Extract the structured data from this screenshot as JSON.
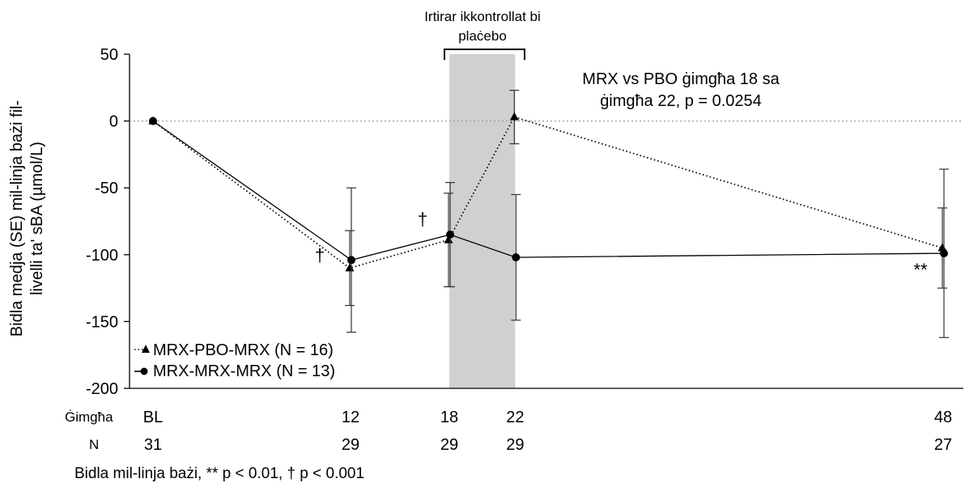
{
  "chart_data": {
    "type": "line",
    "ylabel_line1": "Bidla medja (SE) mil-linja bażi fil-",
    "ylabel_line2": "livelli ta' sBA (µmol/L)",
    "ylim": [
      -200,
      50
    ],
    "yticks": [
      50,
      0,
      -50,
      -100,
      -150,
      -200
    ],
    "ytick_labels": [
      "50",
      "0",
      "-50",
      "-100",
      "-150",
      "-200"
    ],
    "x_weeks": [
      0,
      12,
      18,
      22,
      48
    ],
    "x_labels": [
      "BL",
      "12",
      "18",
      "22",
      "48"
    ],
    "x_row_label": "Ġimgħa",
    "n_row_label": "N",
    "n_values": [
      "31",
      "29",
      "29",
      "29",
      "27"
    ],
    "reference_line_y": 0,
    "shaded_region": {
      "from_week": 18,
      "to_week": 22,
      "label_line1": "Irtirar ikkontrollat bi",
      "label_line2": "plaċebo"
    },
    "annotation_line1": "MRX vs PBO ġimgħa 18 sa",
    "annotation_line2": "ġimgħa 22, p = 0.0254",
    "series": [
      {
        "name": "MRX-PBO-MRX (N = 16)",
        "style": "dotted",
        "marker": "triangle",
        "values": [
          0,
          -110,
          -89,
          3,
          -95
        ],
        "err": [
          0,
          28,
          35,
          20,
          30
        ]
      },
      {
        "name": "MRX-MRX-MRX (N = 13)",
        "style": "solid",
        "marker": "circle",
        "values": [
          0,
          -104,
          -85,
          -102,
          -99
        ],
        "err": [
          0,
          54,
          39,
          47,
          63
        ]
      }
    ],
    "significance_marks": [
      {
        "text": "†",
        "week": 12
      },
      {
        "text": "†",
        "week": 18
      },
      {
        "text": "**",
        "week": 48
      }
    ],
    "footnote": "Bidla mil-linja bażi, ** p < 0.01, † p < 0.001",
    "legend_position": "bottom-left",
    "grid": false
  },
  "colors": {
    "line": "#000000",
    "shade": "#d0d0d0",
    "reference": "#9a9a9a"
  }
}
